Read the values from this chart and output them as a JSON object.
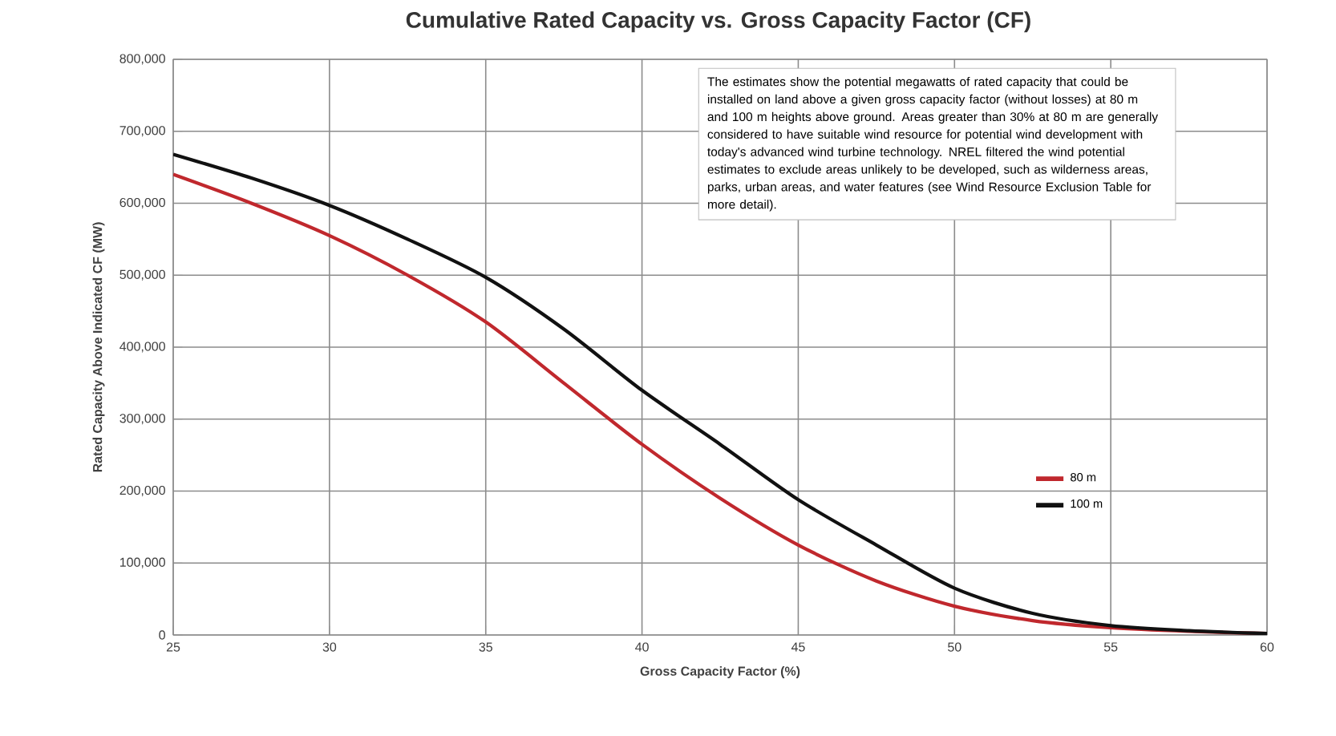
{
  "chart_data": {
    "type": "line",
    "title": "Cumulative Rated Capacity vs. Gross Capacity Factor (CF)",
    "xlabel": "Gross Capacity Factor (%)",
    "ylabel": "Rated Capacity Above Indicated CF (MW)",
    "x": [
      25,
      27.5,
      30,
      32.5,
      35,
      37.5,
      40,
      42.5,
      45,
      47.5,
      50,
      52.5,
      55,
      57.5,
      60
    ],
    "series": [
      {
        "name": "80 m",
        "color": "#c0282d",
        "values": [
          640000,
          600000,
          555000,
          500000,
          435000,
          350000,
          265000,
          190000,
          125000,
          75000,
          40000,
          20000,
          10000,
          5000,
          2000
        ]
      },
      {
        "name": "100 m",
        "color": "#111111",
        "values": [
          668000,
          635000,
          597000,
          550000,
          497000,
          425000,
          340000,
          265000,
          188000,
          125000,
          65000,
          30000,
          13000,
          6000,
          2000
        ]
      }
    ],
    "xlim": [
      25,
      60
    ],
    "xticks": [
      25,
      30,
      35,
      40,
      45,
      50,
      55,
      60
    ],
    "ylim": [
      0,
      800000
    ],
    "yticks": [
      {
        "value": 0,
        "label": "0"
      },
      {
        "value": 100000,
        "label": "100,000"
      },
      {
        "value": 200000,
        "label": "200,000"
      },
      {
        "value": 300000,
        "label": "300,000"
      },
      {
        "value": 400000,
        "label": "400,000"
      },
      {
        "value": 500000,
        "label": "500,000"
      },
      {
        "value": 600000,
        "label": "600,000"
      },
      {
        "value": 700000,
        "label": "700,000"
      },
      {
        "value": 800000,
        "label": "800,000"
      }
    ],
    "grid": true,
    "legend": "bottom right",
    "annotations": [
      "The estimates show the potential megawatts of rated capacity that could be installed on land above a given gross capacity factor (without losses) at 80 m and 100 m heights above ground. Areas greater than 30% at 80 m are generally considered to have suitable wind resource for potential wind development with today's advanced wind turbine technology. NREL filtered the wind potential estimates to exclude areas unlikely to be developed, such as wilderness areas, parks, urban areas, and water features (see Wind Resource Exclusion Table for more detail)."
    ]
  }
}
